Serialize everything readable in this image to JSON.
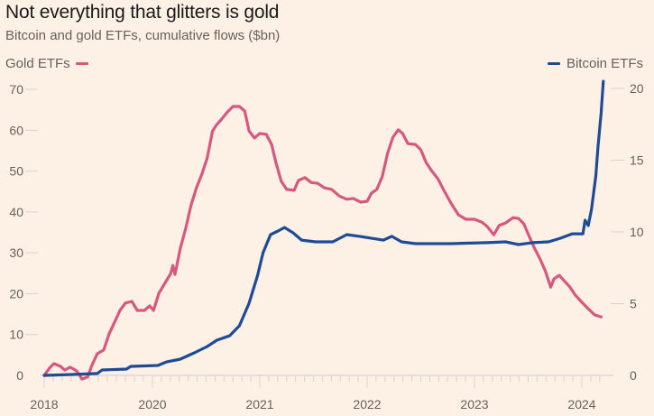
{
  "header": {
    "title": "Not everything that glitters is gold",
    "subtitle": "Bitcoin and gold ETFs, cumulative flows ($bn)"
  },
  "legend": {
    "left_label": "Gold ETFs",
    "right_label": "Bitcoin ETFs"
  },
  "colors": {
    "background": "#fdf0e5",
    "gold": "#d6587f",
    "bitcoin": "#1f4b95",
    "grid": "#d9d3cf",
    "text": "#66605c"
  },
  "chart_data": {
    "type": "line",
    "title": "Not everything that glitters is gold",
    "subtitle": "Bitcoin and gold ETFs, cumulative flows ($bn)",
    "xlabel": "",
    "ylabel_left": "Gold ETFs ($bn)",
    "ylabel_right": "Bitcoin ETFs ($bn)",
    "x_ticks": [
      "2018",
      "2020",
      "2021",
      "2022",
      "2023",
      "2024"
    ],
    "x_tick_values": [
      2018,
      2020,
      2021,
      2022,
      2023,
      2024
    ],
    "ylim_left": [
      0,
      70
    ],
    "yticks_left": [
      0,
      10,
      20,
      30,
      40,
      50,
      60,
      70
    ],
    "ylim_right": [
      0,
      20
    ],
    "yticks_right": [
      0,
      5,
      10,
      15,
      20
    ],
    "legend": [
      "Gold ETFs",
      "Bitcoin ETFs"
    ],
    "legend_placement": "top",
    "grid": false,
    "series": [
      {
        "name": "Gold ETFs",
        "axis": "left",
        "points": [
          [
            2018.0,
            0
          ],
          [
            2018.1,
            1.8
          ],
          [
            2018.18,
            2.9
          ],
          [
            2018.3,
            2.2
          ],
          [
            2018.38,
            1.3
          ],
          [
            2018.48,
            2.0
          ],
          [
            2018.6,
            1.1
          ],
          [
            2018.7,
            -0.9
          ],
          [
            2018.8,
            -0.4
          ],
          [
            2018.88,
            2.4
          ],
          [
            2018.98,
            5.3
          ],
          [
            2019.1,
            6.2
          ],
          [
            2019.2,
            10.2
          ],
          [
            2019.3,
            13.0
          ],
          [
            2019.4,
            15.9
          ],
          [
            2019.5,
            17.7
          ],
          [
            2019.62,
            18.1
          ],
          [
            2019.72,
            15.9
          ],
          [
            2019.85,
            15.9
          ],
          [
            2019.95,
            17.0
          ],
          [
            2020.01,
            15.9
          ],
          [
            2020.06,
            20.1
          ],
          [
            2020.11,
            22.3
          ],
          [
            2020.17,
            24.9
          ],
          [
            2020.19,
            26.9
          ],
          [
            2020.21,
            24.7
          ],
          [
            2020.26,
            31.1
          ],
          [
            2020.31,
            36.0
          ],
          [
            2020.36,
            41.7
          ],
          [
            2020.41,
            45.9
          ],
          [
            2020.46,
            49.2
          ],
          [
            2020.51,
            53.2
          ],
          [
            2020.56,
            59.8
          ],
          [
            2020.6,
            61.4
          ],
          [
            2020.65,
            62.9
          ],
          [
            2020.7,
            64.5
          ],
          [
            2020.75,
            65.8
          ],
          [
            2020.81,
            65.8
          ],
          [
            2020.86,
            64.7
          ],
          [
            2020.9,
            59.8
          ],
          [
            2020.95,
            58.1
          ],
          [
            2021.0,
            59.2
          ],
          [
            2021.06,
            59.0
          ],
          [
            2021.11,
            56.5
          ],
          [
            2021.15,
            52.1
          ],
          [
            2021.2,
            47.5
          ],
          [
            2021.25,
            45.5
          ],
          [
            2021.32,
            45.3
          ],
          [
            2021.36,
            47.7
          ],
          [
            2021.42,
            48.4
          ],
          [
            2021.48,
            47.2
          ],
          [
            2021.54,
            47.0
          ],
          [
            2021.6,
            45.9
          ],
          [
            2021.67,
            45.5
          ],
          [
            2021.74,
            43.9
          ],
          [
            2021.81,
            43.1
          ],
          [
            2021.87,
            43.3
          ],
          [
            2021.94,
            42.4
          ],
          [
            2022.0,
            42.6
          ],
          [
            2022.04,
            44.6
          ],
          [
            2022.09,
            45.5
          ],
          [
            2022.14,
            48.6
          ],
          [
            2022.19,
            54.3
          ],
          [
            2022.24,
            58.3
          ],
          [
            2022.29,
            60.1
          ],
          [
            2022.33,
            59.2
          ],
          [
            2022.38,
            56.7
          ],
          [
            2022.45,
            56.5
          ],
          [
            2022.5,
            55.2
          ],
          [
            2022.55,
            52.1
          ],
          [
            2022.6,
            50.1
          ],
          [
            2022.66,
            48.1
          ],
          [
            2022.71,
            45.5
          ],
          [
            2022.78,
            42.2
          ],
          [
            2022.85,
            39.3
          ],
          [
            2022.92,
            38.2
          ],
          [
            2023.0,
            38.2
          ],
          [
            2023.07,
            37.5
          ],
          [
            2023.12,
            36.4
          ],
          [
            2023.18,
            34.4
          ],
          [
            2023.23,
            36.7
          ],
          [
            2023.29,
            37.3
          ],
          [
            2023.36,
            38.6
          ],
          [
            2023.41,
            38.4
          ],
          [
            2023.46,
            37.1
          ],
          [
            2023.51,
            34.0
          ],
          [
            2023.56,
            31.1
          ],
          [
            2023.61,
            28.5
          ],
          [
            2023.66,
            25.6
          ],
          [
            2023.71,
            21.6
          ],
          [
            2023.74,
            23.6
          ],
          [
            2023.79,
            24.5
          ],
          [
            2023.84,
            23.0
          ],
          [
            2023.89,
            21.6
          ],
          [
            2023.94,
            19.6
          ],
          [
            2024.0,
            17.9
          ],
          [
            2024.06,
            16.3
          ],
          [
            2024.12,
            14.8
          ],
          [
            2024.18,
            14.3
          ]
        ]
      },
      {
        "name": "Bitcoin ETFs",
        "axis": "right",
        "points": [
          [
            2018.0,
            0
          ],
          [
            2018.52,
            0.06
          ],
          [
            2018.98,
            0.13
          ],
          [
            2019.07,
            0.38
          ],
          [
            2019.52,
            0.44
          ],
          [
            2019.6,
            0.63
          ],
          [
            2020.05,
            0.69
          ],
          [
            2020.13,
            0.94
          ],
          [
            2020.26,
            1.13
          ],
          [
            2020.39,
            1.57
          ],
          [
            2020.51,
            2.01
          ],
          [
            2020.6,
            2.45
          ],
          [
            2020.72,
            2.77
          ],
          [
            2020.81,
            3.46
          ],
          [
            2020.9,
            5.03
          ],
          [
            2020.98,
            6.98
          ],
          [
            2021.03,
            8.55
          ],
          [
            2021.1,
            9.81
          ],
          [
            2021.17,
            10.06
          ],
          [
            2021.23,
            10.31
          ],
          [
            2021.31,
            9.94
          ],
          [
            2021.39,
            9.43
          ],
          [
            2021.52,
            9.31
          ],
          [
            2021.68,
            9.31
          ],
          [
            2021.81,
            9.81
          ],
          [
            2021.93,
            9.69
          ],
          [
            2022.15,
            9.43
          ],
          [
            2022.23,
            9.69
          ],
          [
            2022.32,
            9.31
          ],
          [
            2022.45,
            9.18
          ],
          [
            2022.78,
            9.18
          ],
          [
            2023.12,
            9.25
          ],
          [
            2023.29,
            9.31
          ],
          [
            2023.41,
            9.12
          ],
          [
            2023.54,
            9.25
          ],
          [
            2023.69,
            9.31
          ],
          [
            2023.8,
            9.56
          ],
          [
            2023.91,
            9.87
          ],
          [
            2024.01,
            9.87
          ],
          [
            2024.03,
            10.82
          ],
          [
            2024.06,
            10.44
          ],
          [
            2024.09,
            11.57
          ],
          [
            2024.13,
            13.9
          ],
          [
            2024.15,
            15.91
          ],
          [
            2024.18,
            18.3
          ],
          [
            2024.2,
            20.5
          ]
        ]
      }
    ]
  }
}
